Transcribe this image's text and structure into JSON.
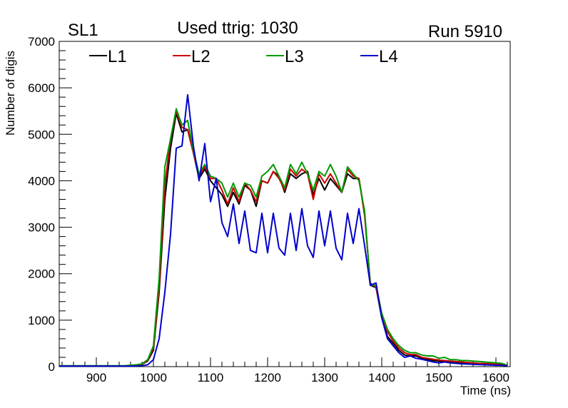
{
  "chart_data": {
    "type": "line",
    "title": "Used ttrig: 1030",
    "left_label": "SL1",
    "right_label": "Run 5910",
    "xlabel": "Time (ns)",
    "ylabel": "Number of digis",
    "xlim": [
      835,
      1625
    ],
    "ylim": [
      0,
      7000
    ],
    "xticks": [
      900,
      1000,
      1100,
      1200,
      1300,
      1400,
      1500,
      1600
    ],
    "yticks": [
      0,
      1000,
      2000,
      3000,
      4000,
      5000,
      6000,
      7000
    ],
    "x": [
      835,
      850,
      860,
      870,
      880,
      890,
      900,
      910,
      920,
      930,
      940,
      950,
      960,
      970,
      980,
      990,
      1000,
      1010,
      1020,
      1030,
      1040,
      1050,
      1060,
      1070,
      1080,
      1090,
      1100,
      1110,
      1120,
      1130,
      1140,
      1150,
      1160,
      1170,
      1180,
      1190,
      1200,
      1210,
      1220,
      1230,
      1240,
      1250,
      1260,
      1270,
      1280,
      1290,
      1300,
      1310,
      1320,
      1330,
      1340,
      1350,
      1360,
      1370,
      1380,
      1390,
      1400,
      1410,
      1420,
      1430,
      1440,
      1450,
      1460,
      1470,
      1480,
      1490,
      1500,
      1510,
      1520,
      1530,
      1540,
      1550,
      1560,
      1570,
      1580,
      1590,
      1600,
      1610,
      1620
    ],
    "series": [
      {
        "name": "L1",
        "color": "#000000",
        "values": [
          15,
          15,
          15,
          15,
          15,
          15,
          15,
          15,
          15,
          15,
          15,
          15,
          20,
          30,
          50,
          120,
          350,
          1600,
          3600,
          4700,
          5450,
          5050,
          5100,
          4600,
          4050,
          4250,
          4000,
          3850,
          3700,
          3450,
          3750,
          3500,
          3900,
          3800,
          3450,
          4000,
          3950,
          4200,
          4100,
          3750,
          4150,
          4050,
          4150,
          4200,
          3700,
          4050,
          3800,
          4050,
          3900,
          3750,
          4150,
          4050,
          4050,
          3300,
          1750,
          1700,
          1050,
          650,
          500,
          350,
          250,
          230,
          230,
          180,
          150,
          130,
          120,
          110,
          100,
          95,
          85,
          75,
          70,
          65,
          60,
          55,
          50,
          45,
          20
        ]
      },
      {
        "name": "L2",
        "color": "#cc0000",
        "values": [
          15,
          15,
          15,
          15,
          15,
          15,
          15,
          15,
          15,
          15,
          15,
          15,
          20,
          30,
          50,
          130,
          400,
          1700,
          3900,
          4900,
          5500,
          5150,
          5100,
          4600,
          4100,
          4300,
          4050,
          4050,
          3800,
          3500,
          3850,
          3550,
          3950,
          3800,
          3550,
          4000,
          3950,
          4200,
          4050,
          3800,
          4250,
          4100,
          4250,
          4150,
          3600,
          4150,
          3950,
          4150,
          3950,
          3750,
          4250,
          4100,
          4050,
          3250,
          1800,
          1700,
          1100,
          750,
          550,
          400,
          300,
          260,
          260,
          200,
          180,
          160,
          140,
          130,
          120,
          110,
          100,
          90,
          80,
          70,
          65,
          60,
          55,
          50,
          20
        ]
      },
      {
        "name": "L3",
        "color": "#009900",
        "values": [
          20,
          20,
          20,
          20,
          20,
          20,
          20,
          20,
          20,
          20,
          20,
          20,
          30,
          40,
          60,
          150,
          450,
          1900,
          4300,
          4900,
          5550,
          5200,
          5300,
          4650,
          4150,
          4350,
          4100,
          4050,
          3950,
          3650,
          3950,
          3650,
          3950,
          3900,
          3650,
          4100,
          4200,
          4350,
          4100,
          3850,
          4350,
          4150,
          4400,
          4150,
          3800,
          4200,
          4100,
          4350,
          4100,
          3750,
          4300,
          4150,
          4000,
          3350,
          1750,
          1750,
          1150,
          800,
          600,
          450,
          350,
          300,
          300,
          250,
          230,
          230,
          180,
          200,
          150,
          150,
          130,
          130,
          120,
          110,
          100,
          90,
          80,
          70,
          30
        ]
      },
      {
        "name": "L4",
        "color": "#0000cc",
        "values": [
          10,
          10,
          10,
          10,
          10,
          10,
          10,
          10,
          10,
          10,
          10,
          10,
          10,
          15,
          20,
          40,
          150,
          600,
          1600,
          2850,
          4700,
          4750,
          5850,
          4750,
          4000,
          4800,
          3550,
          4050,
          3100,
          2800,
          3500,
          2650,
          3350,
          2500,
          2450,
          3300,
          2450,
          3300,
          2550,
          2400,
          3300,
          2500,
          3400,
          2600,
          2350,
          3350,
          2600,
          3350,
          2550,
          2300,
          3300,
          2650,
          3400,
          2600,
          1750,
          1800,
          1050,
          600,
          450,
          300,
          200,
          230,
          180,
          160,
          130,
          100,
          80,
          100,
          80,
          70,
          60,
          55,
          50,
          45,
          40,
          35,
          30,
          28,
          20
        ]
      }
    ]
  }
}
